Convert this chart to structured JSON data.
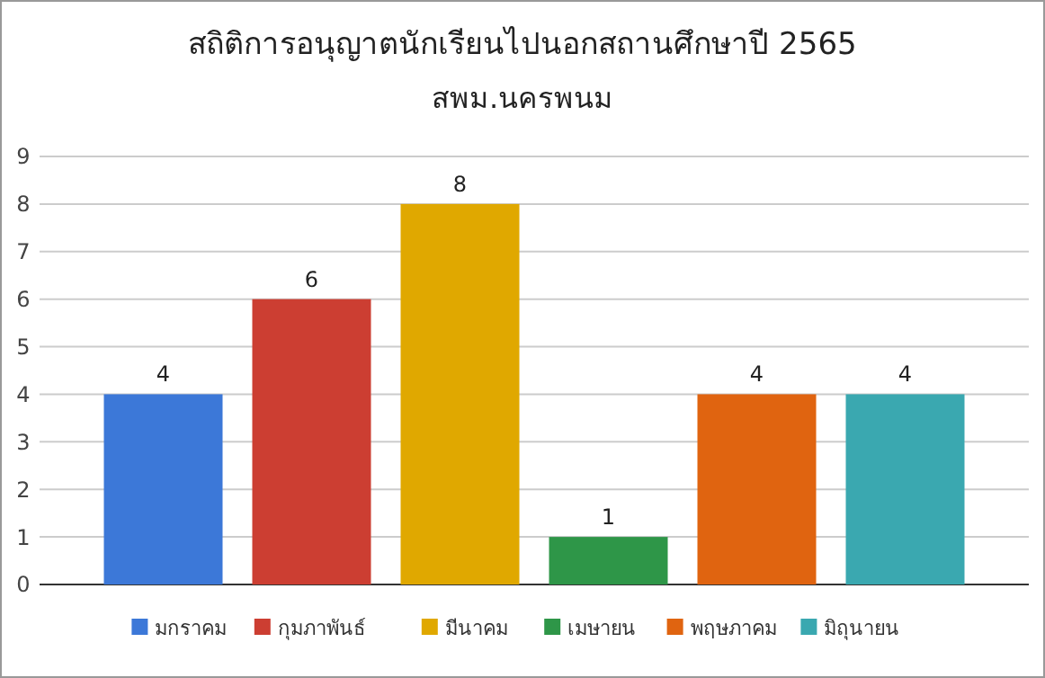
{
  "chart_data": {
    "type": "bar",
    "title": "สถิติการอนุญาตนักเรียนไปนอกสถานศึกษาปี 2565",
    "subtitle": "สพม.นครพนม",
    "categories": [
      null
    ],
    "series": [
      {
        "name": "มกราคม",
        "color": "#3c78d8",
        "values": [
          4
        ]
      },
      {
        "name": "กุมภาพันธ์",
        "color": "#cc3e32",
        "values": [
          6
        ]
      },
      {
        "name": "มีนาคม",
        "color": "#e0a800",
        "values": [
          8
        ]
      },
      {
        "name": "เมษายน",
        "color": "#2e9648",
        "values": [
          1
        ]
      },
      {
        "name": "พฤษภาคม",
        "color": "#e06410",
        "values": [
          4
        ]
      },
      {
        "name": "มิถุนายน",
        "color": "#3aa8b0",
        "values": [
          4
        ]
      }
    ],
    "ylim": [
      0,
      9
    ],
    "yticks": [
      0,
      1,
      2,
      3,
      4,
      5,
      6,
      7,
      8,
      9
    ],
    "grid": "y",
    "legend": "bottom",
    "tick_labels": "y",
    "data_labels": true
  }
}
